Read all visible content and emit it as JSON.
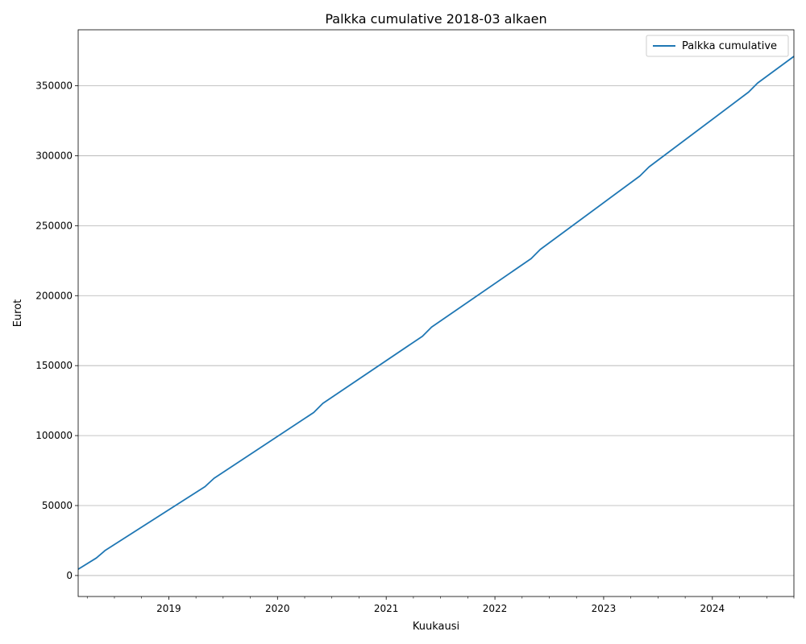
{
  "chart_data": {
    "type": "line",
    "title": "Palkka cumulative 2018-03 alkaen",
    "xlabel": "Kuukausi",
    "ylabel": "Eurot",
    "xlim": [
      "2018-03",
      "2024-10"
    ],
    "ylim": [
      -15000,
      390000
    ],
    "yticks": [
      0,
      50000,
      100000,
      150000,
      200000,
      250000,
      300000,
      350000
    ],
    "ytick_labels": [
      "0",
      "50000",
      "100000",
      "150000",
      "200000",
      "250000",
      "300000",
      "350000"
    ],
    "xticks": [
      "2019-01",
      "2020-01",
      "2021-01",
      "2022-01",
      "2023-01",
      "2024-01"
    ],
    "xtick_labels": [
      "2019",
      "2020",
      "2021",
      "2022",
      "2023",
      "2024"
    ],
    "grid": "y-major",
    "legend": "upper-right",
    "series": [
      {
        "name": "Palkka cumulative",
        "color": "#1f77b4",
        "points": [
          [
            "2018-03",
            4500
          ],
          [
            "2018-05",
            12500
          ],
          [
            "2018-06",
            18000
          ],
          [
            "2019-05",
            63500
          ],
          [
            "2019-06",
            69500
          ],
          [
            "2020-05",
            116500
          ],
          [
            "2020-06",
            123000
          ],
          [
            "2021-05",
            171000
          ],
          [
            "2021-06",
            177500
          ],
          [
            "2022-05",
            226500
          ],
          [
            "2022-06",
            233000
          ],
          [
            "2023-05",
            285500
          ],
          [
            "2023-06",
            292000
          ],
          [
            "2024-05",
            345500
          ],
          [
            "2024-06",
            352000
          ],
          [
            "2024-10",
            371000
          ]
        ]
      }
    ]
  }
}
